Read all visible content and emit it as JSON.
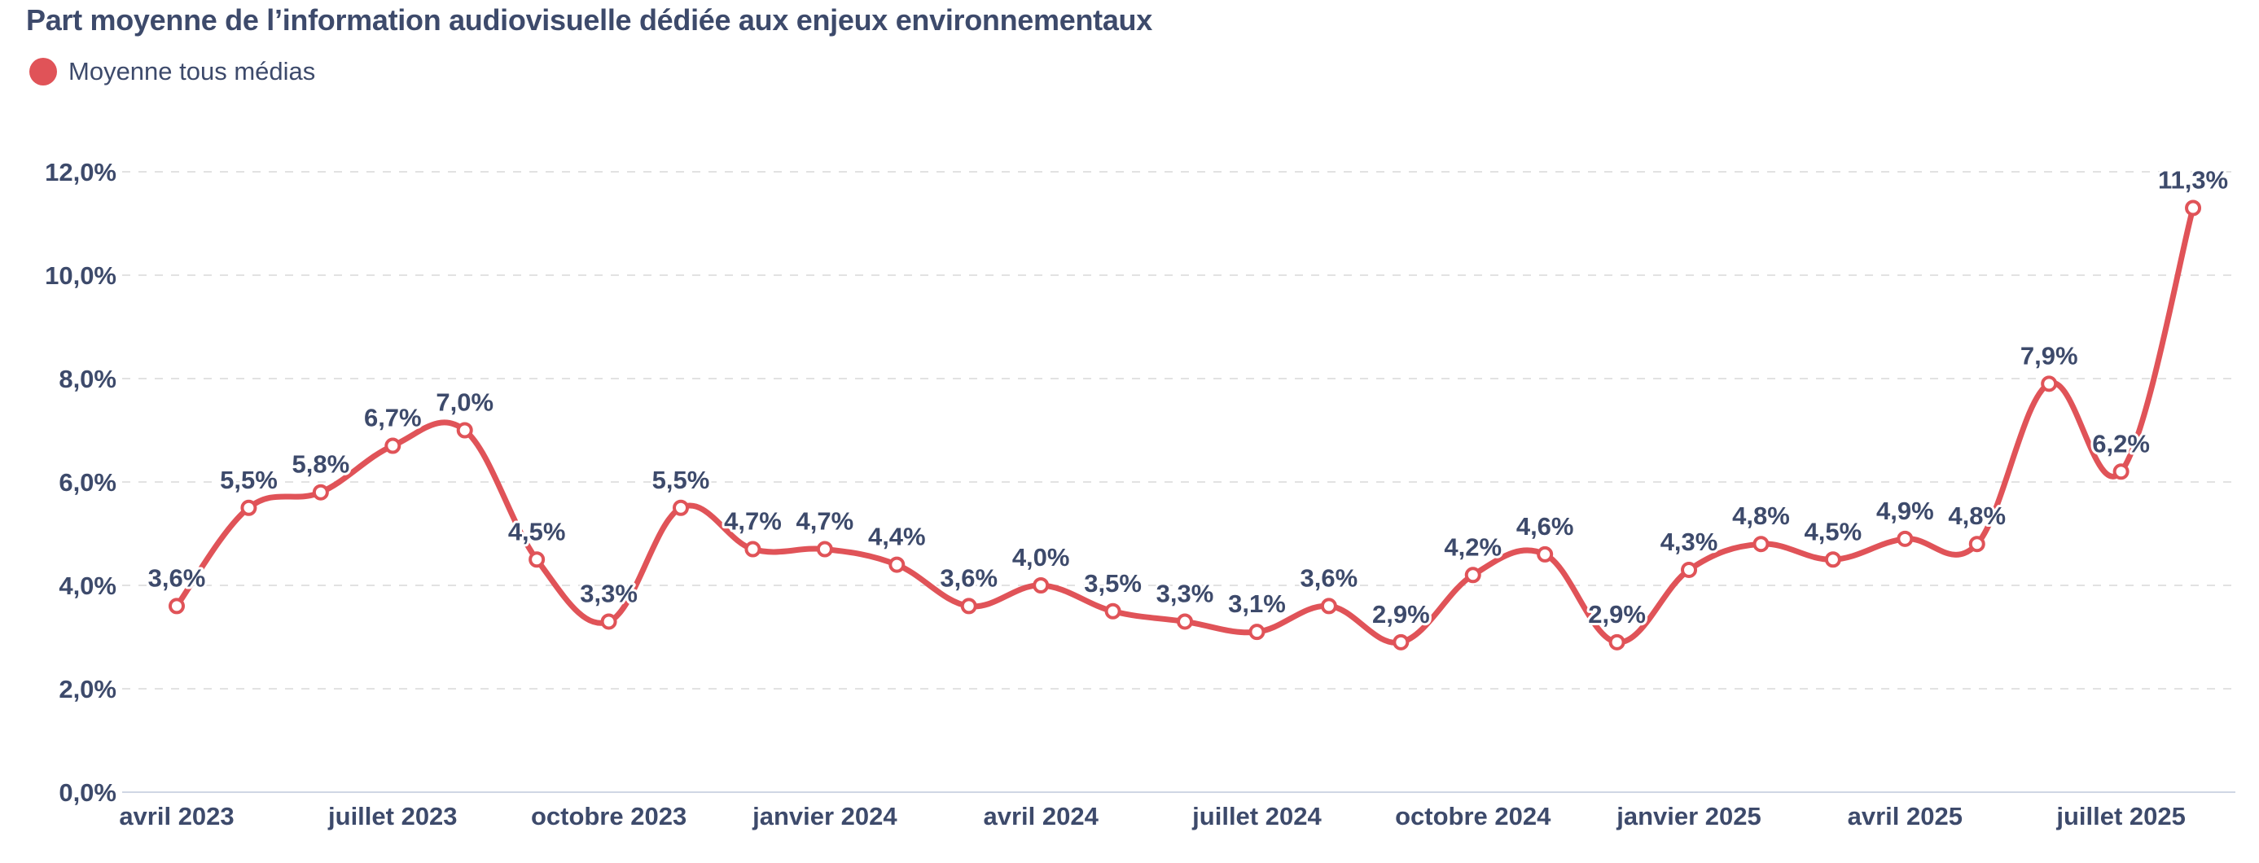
{
  "chart_data": {
    "type": "line",
    "title": "Part moyenne de l’information audiovisuelle dédiée aux enjeux environnementaux",
    "legend_position": "top-left",
    "grid": true,
    "colors": {
      "series": "#e05358",
      "text": "#3d4a6b",
      "grid": "#e2e2e2"
    },
    "series": [
      {
        "name": "Moyenne tous médias",
        "x": [
          "2023-04",
          "2023-05",
          "2023-06",
          "2023-07",
          "2023-08",
          "2023-09",
          "2023-10",
          "2023-11",
          "2023-12",
          "2024-01",
          "2024-02",
          "2024-03",
          "2024-04",
          "2024-05",
          "2024-06",
          "2024-07",
          "2024-08",
          "2024-09",
          "2024-10",
          "2024-11",
          "2024-12",
          "2025-01",
          "2025-02",
          "2025-03",
          "2025-04",
          "2025-05",
          "2025-06",
          "2025-07",
          "2025-08"
        ],
        "values": [
          3.6,
          5.5,
          5.8,
          6.7,
          7.0,
          4.5,
          3.3,
          5.5,
          4.7,
          4.7,
          4.4,
          3.6,
          4.0,
          3.5,
          3.3,
          3.1,
          3.6,
          2.9,
          4.2,
          4.6,
          2.9,
          4.3,
          4.8,
          4.5,
          4.9,
          4.8,
          7.9,
          6.2,
          11.3
        ],
        "labels": [
          "3,6%",
          "5,5%",
          "5,8%",
          "6,7%",
          "7,0%",
          "4,5%",
          "3,3%",
          "5,5%",
          "4,7%",
          "4,7%",
          "4,4%",
          "3,6%",
          "4,0%",
          "3,5%",
          "3,3%",
          "3,1%",
          "3,6%",
          "2,9%",
          "4,2%",
          "4,6%",
          "2,9%",
          "4,3%",
          "4,8%",
          "4,5%",
          "4,9%",
          "4,8%",
          "7,9%",
          "6,2%",
          "11,3%"
        ]
      }
    ],
    "ylim": [
      0,
      12
    ],
    "y_ticks": [
      0,
      2,
      4,
      6,
      8,
      10,
      12
    ],
    "y_tick_labels": [
      "0,0%",
      "2,0%",
      "4,0%",
      "6,0%",
      "8,0%",
      "10,0%",
      "12,0%"
    ],
    "x_ticks": [
      {
        "index": 0,
        "label": "avril 2023"
      },
      {
        "index": 3,
        "label": "juillet 2023"
      },
      {
        "index": 6,
        "label": "octobre 2023"
      },
      {
        "index": 9,
        "label": "janvier 2024"
      },
      {
        "index": 12,
        "label": "avril 2024"
      },
      {
        "index": 15,
        "label": "juillet 2024"
      },
      {
        "index": 18,
        "label": "octobre 2024"
      },
      {
        "index": 21,
        "label": "janvier 2025"
      },
      {
        "index": 24,
        "label": "avril 2025"
      },
      {
        "index": 27,
        "label": "juillet 2025"
      }
    ]
  }
}
